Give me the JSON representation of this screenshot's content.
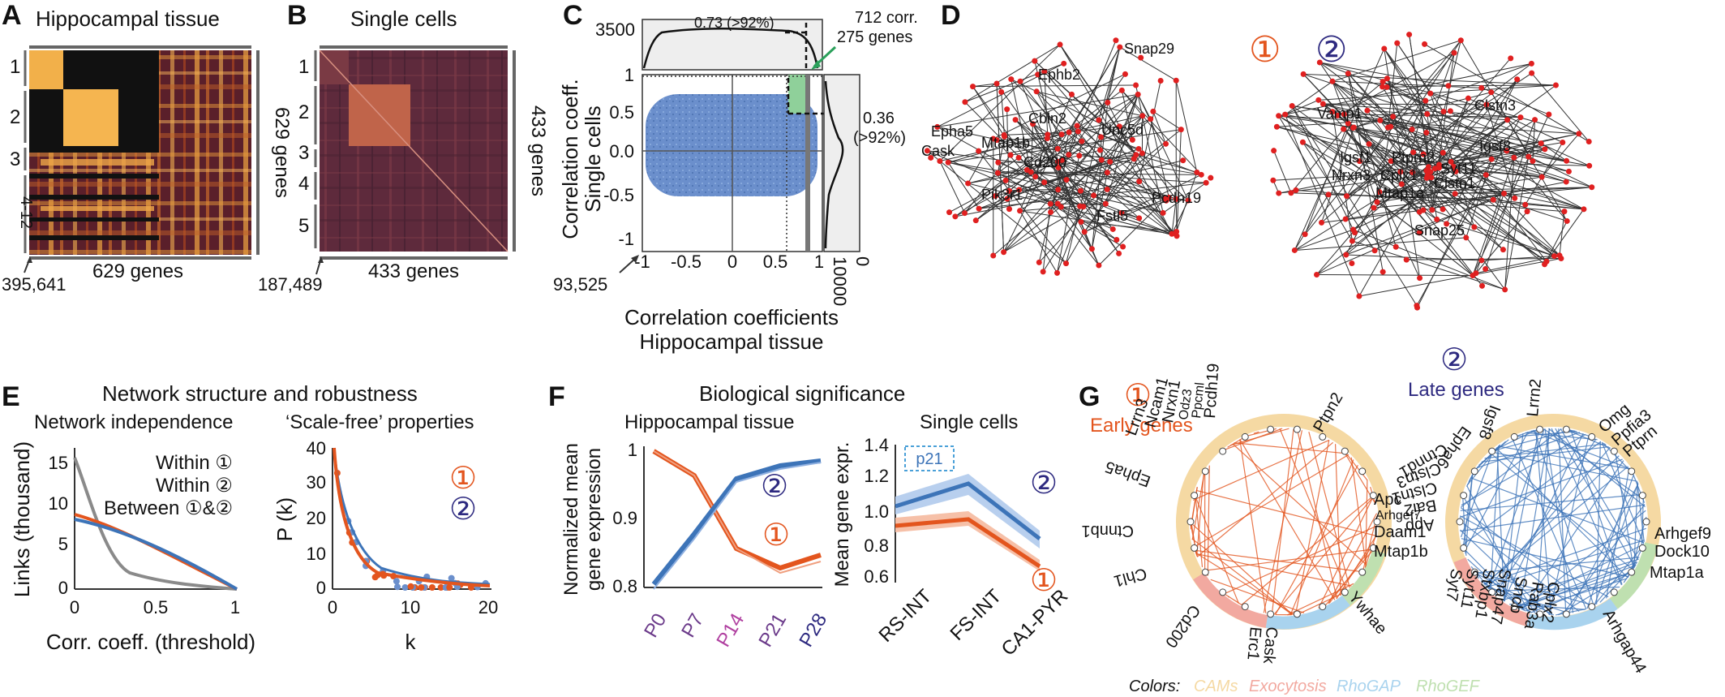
{
  "panel_a": {
    "letter": "A",
    "title": "Hippocampal tissue",
    "row_labels": [
      "1",
      "2",
      "3",
      "4-12"
    ],
    "right_label": "629 genes",
    "bottom_label": "629 genes",
    "count": "395,641"
  },
  "panel_b": {
    "letter": "B",
    "title": "Single cells",
    "row_labels": [
      "1",
      "2",
      "3",
      "4",
      "5"
    ],
    "right_label": "433 genes",
    "bottom_label": "433 genes",
    "count": "187,489"
  },
  "panel_c": {
    "letter": "C",
    "top_y_tick": "3500",
    "top_annotation": "0.73 (>92%)",
    "corr_label": "712 corr.",
    "genes_label": "275 genes",
    "right_annotation_1": "0.36",
    "right_annotation_2": "(>92%)",
    "ylabel_1": "Correlation coeff.",
    "ylabel_2": "Single cells",
    "xlabel_1": "Correlation coefficients",
    "xlabel_2": "Hippocampal tissue",
    "y_ticks": [
      "1",
      "0.5",
      "0.0",
      "-0.5",
      "-1"
    ],
    "x_ticks": [
      "-1",
      "-0.5",
      "0",
      "0.5",
      "1"
    ],
    "side_ticks": [
      "10000",
      "0"
    ],
    "count": "93,525"
  },
  "panel_d": {
    "letter": "D",
    "module1_label": "①",
    "module2_label": "②",
    "genes_module1": [
      "Snap29",
      "Ephb2",
      "Cbln2",
      "Unc5d",
      "Epha5",
      "Cask",
      "Mtap1b",
      "Cd200",
      "Pik3r1",
      "Fstl5",
      "Pcdh19"
    ],
    "genes_module2": [
      "Vamp1",
      "Clstn3",
      "Igsf8",
      "Ptprn2",
      "Igsf1",
      "Nrxn3",
      "Cplx1",
      "Syt11",
      "Clstn1",
      "Mtap1a",
      "Snap25"
    ]
  },
  "panel_e": {
    "letter": "E",
    "title": "Network structure and robustness",
    "left_title": "Network independence",
    "right_title": "‘Scale-free’ properties",
    "legend": [
      "Within ①",
      "Within ②",
      "Between ①&②"
    ],
    "left_ylabel": "Links (thousand)",
    "left_xlabel": "Corr. coeff. (threshold)",
    "left_y_ticks": [
      "15",
      "10",
      "5",
      "0"
    ],
    "left_x_ticks": [
      "0",
      "0.5",
      "1"
    ],
    "right_ylabel": "P (k)",
    "right_xlabel": "k",
    "right_y_ticks": [
      "40",
      "30",
      "20",
      "10",
      "0"
    ],
    "right_x_ticks": [
      "0",
      "10",
      "20"
    ],
    "module_labels": [
      "①",
      "②"
    ]
  },
  "panel_f": {
    "letter": "F",
    "title": "Biological significance",
    "left_title": "Hippocampal tissue",
    "right_title": "Single cells",
    "left_ylabel_1": "Normalized mean",
    "left_ylabel_2": "gene expression",
    "right_ylabel": "Mean gene expr.",
    "left_y_ticks": [
      "1",
      "0.9",
      "0.8"
    ],
    "right_y_ticks": [
      "1.4",
      "1.2",
      "1.0",
      "0.8",
      "0.6"
    ],
    "time_points": [
      "P0",
      "P7",
      "P14",
      "P21",
      "P28"
    ],
    "cell_types": [
      "RS-INT",
      "FS-INT",
      "CA1-PYR"
    ],
    "inset_label": "p21",
    "module_labels": [
      "①",
      "②"
    ]
  },
  "panel_g": {
    "letter": "G",
    "early_title": "Early genes",
    "late_title": "Late genes",
    "module1_label": "①",
    "module2_label": "②",
    "early_genes": [
      "Lrrn3",
      "Ncam1",
      "Nrxn1",
      "Odz3",
      "Ppcml",
      "Pcdh19",
      "Ptpn2",
      "Epha5",
      "Ctnnb1",
      "Chl1",
      "Cd200",
      "Cask",
      "Erc1",
      "Ywhae",
      "Mtap1b",
      "Daam1",
      "Arhgef7",
      "Apc"
    ],
    "late_genes": [
      "Lrrn2",
      "Igsf8",
      "Epha6",
      "Ctnnd1",
      "Clstn3",
      "Clstn1",
      "Bai2",
      "App",
      "Syt7",
      "Syt11",
      "Stxbp1",
      "Snap47",
      "Sncb",
      "Rab3a",
      "Cplx2",
      "Arhgap44",
      "Mtap1a",
      "Dock10",
      "Arhgef9",
      "Ptprn",
      "Ppfia3",
      "Omg"
    ],
    "colors_label": "Colors:",
    "categories": [
      "CAMs",
      "Exocytosis",
      "RhoGAP",
      "RhoGEF"
    ]
  },
  "colors": {
    "module1": "#e3551e",
    "module2": "#2e2a80",
    "scatter": "#6b8fcc",
    "line_blue": "#3d74b8",
    "gray": "#8a8a8a",
    "cams": "#f5d9a3",
    "exocytosis": "#f2a9a0",
    "rhogap": "#a9d3ee",
    "rhogef": "#bfe0b0",
    "green": "#8fd09a"
  }
}
